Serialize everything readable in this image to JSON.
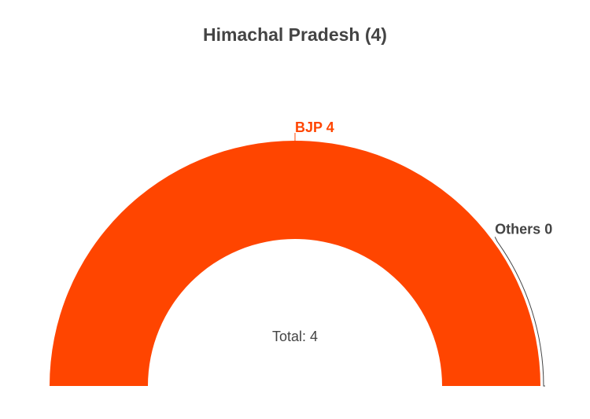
{
  "chart_data": {
    "type": "pie",
    "style": "semi-donut",
    "title": "Himachal Pradesh (4)",
    "center_label": "Total: 4",
    "slices": [
      {
        "label": "BJP",
        "value": 4,
        "display": "BJP 4",
        "color": "#ff4500"
      },
      {
        "label": "Others",
        "value": 0,
        "display": "Others 0",
        "color": "#444444"
      }
    ]
  },
  "colors": {
    "title": "#444444",
    "label_default": "#444444",
    "total": "#444444",
    "leader_line": "#444444"
  }
}
